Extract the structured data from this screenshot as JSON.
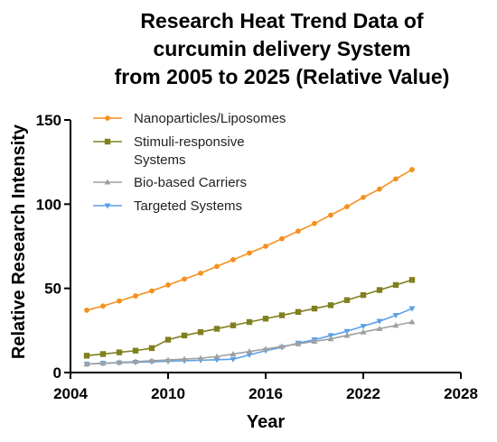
{
  "chart_data": {
    "type": "line",
    "title_lines": [
      "Research Heat Trend Data of",
      "curcumin delivery System",
      "from 2005 to 2025 (Relative Value)"
    ],
    "xlabel": "Year",
    "ylabel": "Relative Research Intensity",
    "xlim": [
      2004,
      2028
    ],
    "ylim": [
      0,
      150
    ],
    "xticks": [
      2004,
      2010,
      2016,
      2022,
      2028
    ],
    "yticks": [
      0,
      50,
      100,
      150
    ],
    "grid": false,
    "legend_position": "top-left",
    "x": [
      2005,
      2006,
      2007,
      2008,
      2009,
      2010,
      2011,
      2012,
      2013,
      2014,
      2015,
      2016,
      2017,
      2018,
      2019,
      2020,
      2021,
      2022,
      2023,
      2024,
      2025
    ],
    "series": [
      {
        "name_lines": [
          "Nanoparticles/Liposomes"
        ],
        "color": "#f5901e",
        "marker": "circle",
        "values": [
          37,
          39.5,
          42.5,
          45.5,
          48.5,
          52,
          55.5,
          59,
          63,
          67,
          71,
          75,
          79.5,
          84,
          88.5,
          93.5,
          98.5,
          104,
          109,
          115,
          120.5
        ]
      },
      {
        "name_lines": [
          "Stimuli-responsive",
          "Systems"
        ],
        "color": "#808020",
        "marker": "square",
        "values": [
          10,
          11,
          12,
          13,
          14.5,
          19.5,
          22,
          24,
          26,
          28,
          30,
          32,
          34,
          36,
          38,
          40,
          43,
          46,
          49,
          52,
          55
        ]
      },
      {
        "name_lines": [
          "Bio-based Carriers"
        ],
        "color": "#a0a0a0",
        "marker": "triangle-up",
        "values": [
          5,
          5.5,
          6,
          6.5,
          7,
          7.5,
          8,
          8.5,
          9.5,
          11,
          12.5,
          14,
          15.5,
          17,
          18.5,
          20,
          22,
          24,
          26,
          28,
          30
        ]
      },
      {
        "name_lines": [
          "Targeted Systems"
        ],
        "color": "#5aa0e6",
        "marker": "triangle-down",
        "values": [
          5,
          5.5,
          5.8,
          6.1,
          6.4,
          6.7,
          7,
          7.3,
          7.6,
          7.9,
          10.5,
          13,
          15,
          17.5,
          19.5,
          22,
          24.5,
          27.5,
          30.5,
          34,
          38
        ]
      }
    ]
  }
}
